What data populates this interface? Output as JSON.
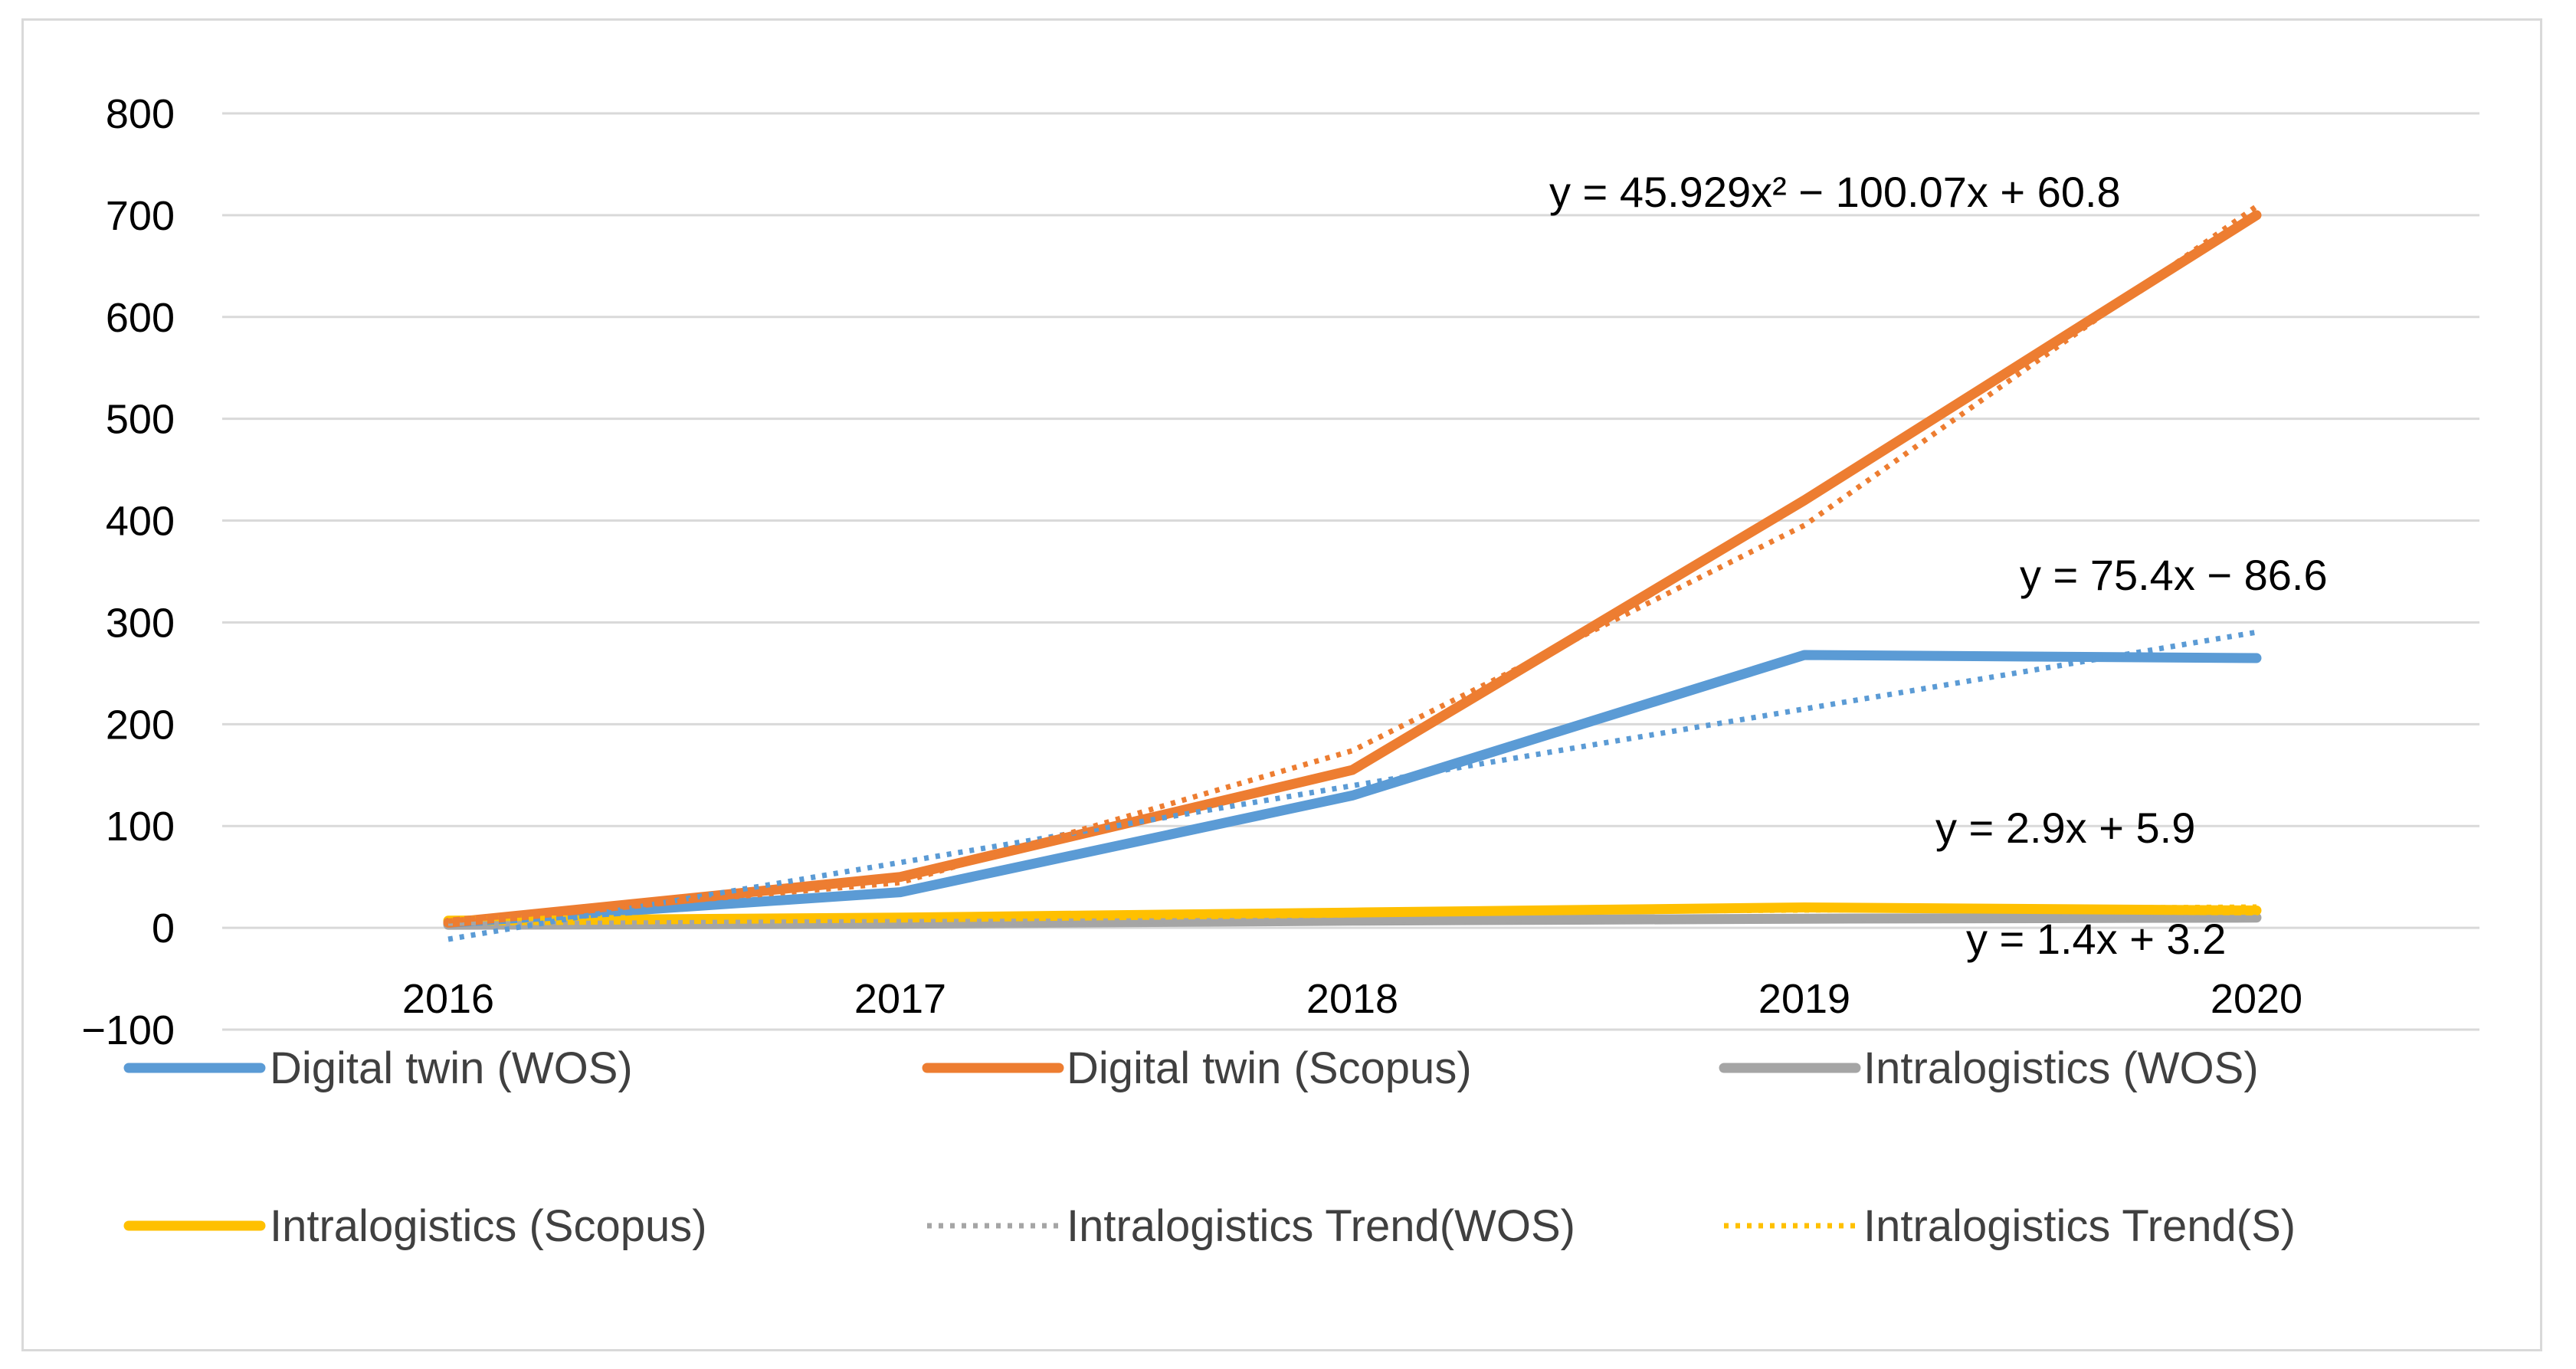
{
  "chart_data": {
    "type": "line",
    "title": "",
    "xlabel": "",
    "ylabel": "",
    "categories": [
      "2016",
      "2017",
      "2018",
      "2019",
      "2020"
    ],
    "ylim": [
      -100,
      800
    ],
    "yticks": [
      800,
      700,
      600,
      500,
      400,
      300,
      200,
      100,
      0,
      -100
    ],
    "ytick_labels": [
      "800",
      "700",
      "600",
      "500",
      "400",
      "300",
      "200",
      "100",
      "0",
      "−100"
    ],
    "grid": "horizontal",
    "legend_position": "bottom",
    "series": [
      {
        "name": "Digital twin (WOS)",
        "values": [
          5,
          35,
          130,
          268,
          265
        ],
        "color": "#5B9BD5",
        "style": "solid"
      },
      {
        "name": "Digital twin (Scopus)",
        "values": [
          5,
          50,
          155,
          420,
          700
        ],
        "color": "#ED7D31",
        "style": "solid"
      },
      {
        "name": "Intralogistics (WOS)",
        "values": [
          3,
          4,
          7,
          9,
          10
        ],
        "color": "#A5A5A5",
        "style": "solid"
      },
      {
        "name": "Intralogistics (Scopus)",
        "values": [
          7,
          10,
          15,
          20,
          17
        ],
        "color": "#FFC000",
        "style": "solid"
      },
      {
        "name": "Intralogistics Trend(WOS)",
        "values": [
          4.6,
          6.0,
          7.4,
          8.8,
          10.2
        ],
        "color": "#A5A5A5",
        "style": "dotted"
      },
      {
        "name": "Intralogistics Trend(S)",
        "values": [
          8.8,
          11.7,
          14.6,
          17.5,
          20.4
        ],
        "color": "#FFC000",
        "style": "dotted"
      }
    ],
    "trendlines": [
      {
        "of": "Digital twin (WOS)",
        "values": [
          -11.2,
          64.2,
          139.6,
          215.0,
          290.4
        ],
        "color": "#5B9BD5",
        "style": "dotted",
        "equation": "y = 75.4x − 86.6"
      },
      {
        "of": "Digital twin (Scopus)",
        "values": [
          6.66,
          44.38,
          173.96,
          395.4,
          708.7
        ],
        "color": "#ED7D31",
        "style": "dotted",
        "equation": "y = 45.929x² − 100.07x + 60.8"
      }
    ],
    "annotations": [
      {
        "text": "y = 45.929x² − 100.07x + 60.8"
      },
      {
        "text": "y = 75.4x − 86.6"
      },
      {
        "text": "y = 2.9x + 5.9"
      },
      {
        "text": "y = 1.4x + 3.2"
      }
    ]
  }
}
